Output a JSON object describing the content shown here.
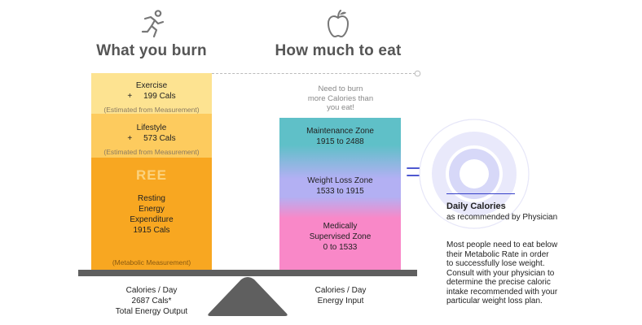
{
  "burn": {
    "title": "What you burn",
    "icon": "running-person-icon",
    "exercise": {
      "label": "Exercise",
      "value": "+     199 Cals",
      "note": "(Estimated from Measurement)",
      "color": "#fde391"
    },
    "lifestyle": {
      "label": "Lifestyle",
      "value": "+     573 Cals",
      "note": "(Estimated from Measurement)",
      "color": "#fdcb5e"
    },
    "ree": {
      "abbr": "REE",
      "line1": "Resting",
      "line2": "Energy",
      "line3": "Expenditure",
      "value": "1915 Cals",
      "note": "(Metabolic Measurement)",
      "color": "#f8a721"
    },
    "caption1": "Calories / Day",
    "caption2": "2687 Cals*",
    "caption3": "Total Energy Output"
  },
  "eat": {
    "title": "How much to eat",
    "icon": "apple-icon",
    "need_line1": "Need to burn",
    "need_line2": "more Calories than",
    "need_line3": "you eat!",
    "maintenance": {
      "label": "Maintenance Zone",
      "range": "1915 to 2488",
      "color": "#5fc0c8"
    },
    "weight_loss": {
      "label": "Weight Loss Zone",
      "range": "1533 to 1915",
      "color": "#b3b0f3"
    },
    "medical": {
      "label1": "Medically",
      "label2": "Supervised Zone",
      "range": "0 to 1533",
      "color": "#f988c8"
    },
    "caption1": "Calories / Day",
    "caption2": "Energy Input"
  },
  "daily": {
    "title": "Daily Calories",
    "subtitle": "as recommended by Physician",
    "body1": "Most people need to eat below",
    "body2": "their Metabolic Rate in order",
    "body3": "to successfully lose weight.",
    "body4": "Consult with your physician to",
    "body5": "determine the precise caloric",
    "body6": "intake recommended with your",
    "body7": "particular weight loss plan.",
    "accent": "#3640c9"
  }
}
